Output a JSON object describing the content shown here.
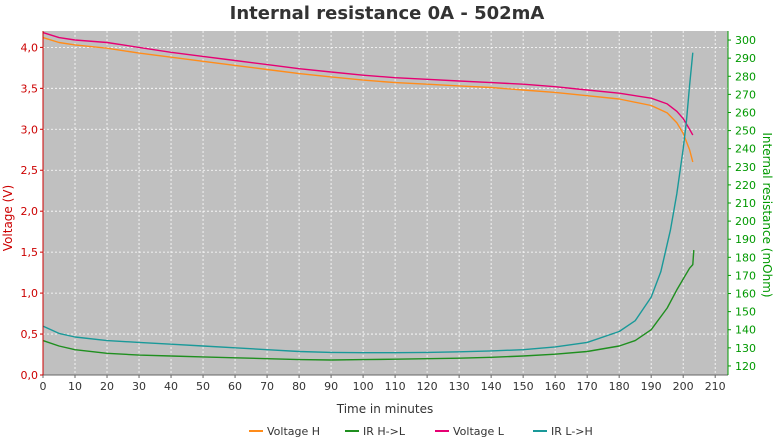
{
  "chart_data": {
    "type": "line",
    "title": "Internal resistance  0A - 502mA",
    "xlabel": "Time in minutes",
    "ylabel_left": "Voltage (V)",
    "ylabel_right": "Internal resistance (mOhm)",
    "xlim": [
      0,
      214
    ],
    "ylim_left": [
      0,
      4.2
    ],
    "ylim_right": [
      115,
      305
    ],
    "x_ticks": [
      0,
      10,
      20,
      30,
      40,
      50,
      60,
      70,
      80,
      90,
      100,
      110,
      120,
      130,
      140,
      150,
      160,
      170,
      180,
      190,
      200,
      210
    ],
    "y_left_ticks": [
      0.0,
      0.5,
      1.0,
      1.5,
      2.0,
      2.5,
      3.0,
      3.5,
      4.0
    ],
    "y_left_tick_labels": [
      "0,0",
      "0,5",
      "1,0",
      "1,5",
      "2,0",
      "2,5",
      "3,0",
      "3,5",
      "4,0"
    ],
    "y_right_ticks": [
      120,
      130,
      140,
      150,
      160,
      170,
      180,
      190,
      200,
      210,
      220,
      230,
      240,
      250,
      260,
      270,
      280,
      290,
      300
    ],
    "grid": true,
    "legend_position": "bottom",
    "colors": {
      "left_axis": "#cc0000",
      "right_axis": "#009900",
      "plot_bg": "#c0c0c0",
      "grid": "#ffffff"
    },
    "series": [
      {
        "name": "Voltage H",
        "axis": "left",
        "color": "#ff8c1a",
        "points": [
          [
            0,
            4.12
          ],
          [
            5,
            4.06
          ],
          [
            10,
            4.03
          ],
          [
            20,
            3.99
          ],
          [
            30,
            3.93
          ],
          [
            40,
            3.88
          ],
          [
            50,
            3.83
          ],
          [
            60,
            3.78
          ],
          [
            70,
            3.73
          ],
          [
            80,
            3.68
          ],
          [
            90,
            3.64
          ],
          [
            100,
            3.6
          ],
          [
            110,
            3.57
          ],
          [
            120,
            3.55
          ],
          [
            130,
            3.53
          ],
          [
            140,
            3.51
          ],
          [
            150,
            3.48
          ],
          [
            160,
            3.45
          ],
          [
            170,
            3.41
          ],
          [
            180,
            3.37
          ],
          [
            190,
            3.29
          ],
          [
            195,
            3.2
          ],
          [
            198,
            3.08
          ],
          [
            200,
            2.95
          ],
          [
            202,
            2.75
          ],
          [
            203,
            2.6
          ]
        ]
      },
      {
        "name": "IR H->L",
        "axis": "right",
        "color": "#1f8f1f",
        "points": [
          [
            0,
            134
          ],
          [
            5,
            131
          ],
          [
            10,
            129
          ],
          [
            20,
            127
          ],
          [
            30,
            126
          ],
          [
            40,
            125.5
          ],
          [
            50,
            125
          ],
          [
            60,
            124.5
          ],
          [
            70,
            124
          ],
          [
            80,
            123.5
          ],
          [
            90,
            123.3
          ],
          [
            100,
            123.5
          ],
          [
            110,
            123.7
          ],
          [
            120,
            124
          ],
          [
            130,
            124.3
          ],
          [
            140,
            124.8
          ],
          [
            150,
            125.5
          ],
          [
            160,
            126.5
          ],
          [
            170,
            128
          ],
          [
            180,
            131
          ],
          [
            185,
            134
          ],
          [
            190,
            140
          ],
          [
            195,
            152
          ],
          [
            198,
            162
          ],
          [
            200,
            168
          ],
          [
            202,
            174
          ],
          [
            203,
            176
          ],
          [
            203.3,
            184
          ]
        ]
      },
      {
        "name": "Voltage L",
        "axis": "left",
        "color": "#e60073",
        "points": [
          [
            0,
            4.18
          ],
          [
            5,
            4.12
          ],
          [
            10,
            4.09
          ],
          [
            20,
            4.06
          ],
          [
            30,
            4.0
          ],
          [
            40,
            3.94
          ],
          [
            50,
            3.89
          ],
          [
            60,
            3.84
          ],
          [
            70,
            3.79
          ],
          [
            80,
            3.74
          ],
          [
            90,
            3.7
          ],
          [
            100,
            3.66
          ],
          [
            110,
            3.63
          ],
          [
            120,
            3.61
          ],
          [
            130,
            3.59
          ],
          [
            140,
            3.57
          ],
          [
            150,
            3.55
          ],
          [
            160,
            3.52
          ],
          [
            170,
            3.48
          ],
          [
            180,
            3.44
          ],
          [
            190,
            3.38
          ],
          [
            195,
            3.31
          ],
          [
            198,
            3.22
          ],
          [
            200,
            3.13
          ],
          [
            202,
            3.0
          ],
          [
            203,
            2.93
          ]
        ]
      },
      {
        "name": "IR L->H",
        "axis": "right",
        "color": "#1a9999",
        "points": [
          [
            0,
            142
          ],
          [
            5,
            138
          ],
          [
            10,
            136
          ],
          [
            20,
            134
          ],
          [
            30,
            133
          ],
          [
            40,
            132
          ],
          [
            50,
            131
          ],
          [
            60,
            130
          ],
          [
            70,
            129
          ],
          [
            80,
            128
          ],
          [
            90,
            127.5
          ],
          [
            100,
            127.3
          ],
          [
            110,
            127.3
          ],
          [
            120,
            127.5
          ],
          [
            130,
            127.8
          ],
          [
            140,
            128.3
          ],
          [
            150,
            129
          ],
          [
            160,
            130.5
          ],
          [
            170,
            133
          ],
          [
            180,
            139
          ],
          [
            185,
            145
          ],
          [
            190,
            158
          ],
          [
            193,
            172
          ],
          [
            196,
            195
          ],
          [
            198,
            215
          ],
          [
            200,
            240
          ],
          [
            201,
            255
          ],
          [
            202,
            275
          ],
          [
            203,
            293
          ]
        ]
      }
    ]
  }
}
